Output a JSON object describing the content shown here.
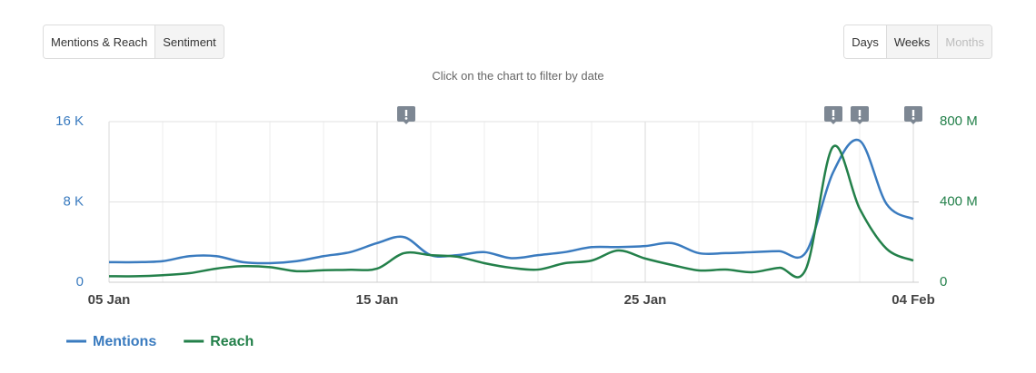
{
  "ui": {
    "tabs": [
      "Mentions & Reach",
      "Sentiment"
    ],
    "periods": [
      "Days",
      "Weeks",
      "Months"
    ],
    "hint": "Click on the chart to filter by date"
  },
  "chart_data": {
    "type": "line",
    "categories": [
      "05 Jan",
      null,
      null,
      null,
      null,
      null,
      null,
      null,
      null,
      null,
      "15 Jan",
      null,
      null,
      null,
      null,
      null,
      null,
      null,
      null,
      null,
      "25 Jan",
      null,
      null,
      null,
      null,
      null,
      null,
      null,
      null,
      null,
      "04 Feb"
    ],
    "series": [
      {
        "name": "Mentions",
        "color": "#3a7bbf",
        "values": [
          2000,
          2000,
          2100,
          2600,
          2600,
          2000,
          1900,
          2100,
          2600,
          3000,
          3900,
          4500,
          2700,
          2700,
          3000,
          2400,
          2700,
          3000,
          3500,
          3500,
          3600,
          3900,
          2900,
          2900,
          3000,
          3100,
          3000,
          10900,
          14100,
          7800,
          6300
        ]
      },
      {
        "name": "Reach",
        "color": "#23804a",
        "axis": "y2",
        "values": [
          30000000,
          30000000,
          35000000,
          45000000,
          68000000,
          80000000,
          75000000,
          55000000,
          60000000,
          62000000,
          68000000,
          145000000,
          135000000,
          127000000,
          95000000,
          72000000,
          63000000,
          95000000,
          108000000,
          158000000,
          118000000,
          86000000,
          59000000,
          63000000,
          50000000,
          72000000,
          68000000,
          674000000,
          366000000,
          167000000,
          108000000
        ]
      }
    ],
    "ylim": [
      0,
      16000
    ],
    "yticks": [
      0,
      {
        "value": 8000,
        "label": "8 K"
      },
      {
        "value": 16000,
        "label": "16 K"
      }
    ],
    "y2lim": [
      0,
      800000000
    ],
    "y2ticks": [
      0,
      {
        "value": 400000000,
        "label": "400 M"
      },
      {
        "value": 800000000,
        "label": "800 M"
      }
    ],
    "grid": true
  }
}
